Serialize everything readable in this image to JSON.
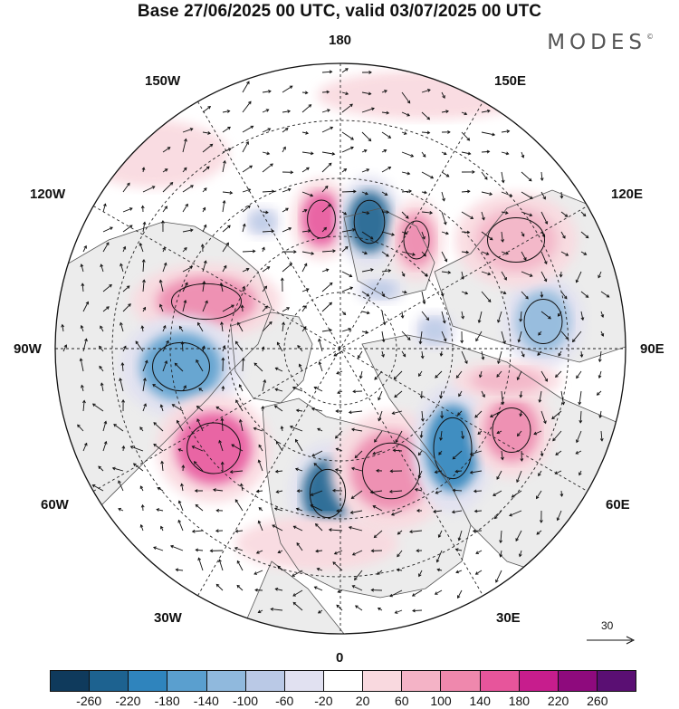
{
  "header": {
    "title": "Base 27/06/2025 00 UTC, valid 03/07/2025 00 UTC",
    "brand": "MODES",
    "brand_mark": "©"
  },
  "map": {
    "projection": "north-polar-stereographic",
    "longitude_labels": {
      "top": "180",
      "bottom": "0",
      "left": "90W",
      "right": "90E",
      "upper_left_1": "150W",
      "upper_left_2": "120W",
      "lower_left_1": "60W",
      "lower_left_2": "30W",
      "upper_right_1": "150E",
      "upper_right_2": "120E",
      "lower_right_1": "60E",
      "lower_right_2": "30E"
    },
    "reference_vector_label": "30",
    "colors": {
      "land": "#ececec",
      "ocean": "#ffffff",
      "coast": "#555555",
      "grid": "#222222",
      "arrow": "#111111"
    }
  },
  "colorbar": {
    "bins": [
      "#0f3a5c",
      "#1d6290",
      "#2f84bd",
      "#5a9fcf",
      "#90b9dd",
      "#bac9e6",
      "#e1e1f1",
      "#ffffff",
      "#f9d9df",
      "#f4b3c6",
      "#ef88ad",
      "#e7559b",
      "#c71d8d",
      "#8e0a7d",
      "#5a0f73"
    ],
    "labels": [
      "-260",
      "-220",
      "-180",
      "-140",
      "-100",
      "-60",
      "-20",
      "20",
      "60",
      "100",
      "140",
      "180",
      "220",
      "260"
    ]
  }
}
